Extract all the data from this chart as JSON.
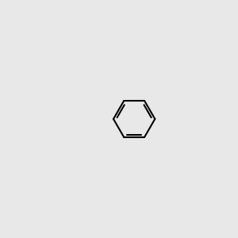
{
  "bg_color": "#e8e8e8",
  "black": "#000000",
  "blue": "#0000ff",
  "red": "#ff0000",
  "yellow_green": "#aaaa00",
  "gray_nh": "#555555",
  "lw": 1.5,
  "lw2": 2.5,
  "fs": 9,
  "fs_small": 8
}
